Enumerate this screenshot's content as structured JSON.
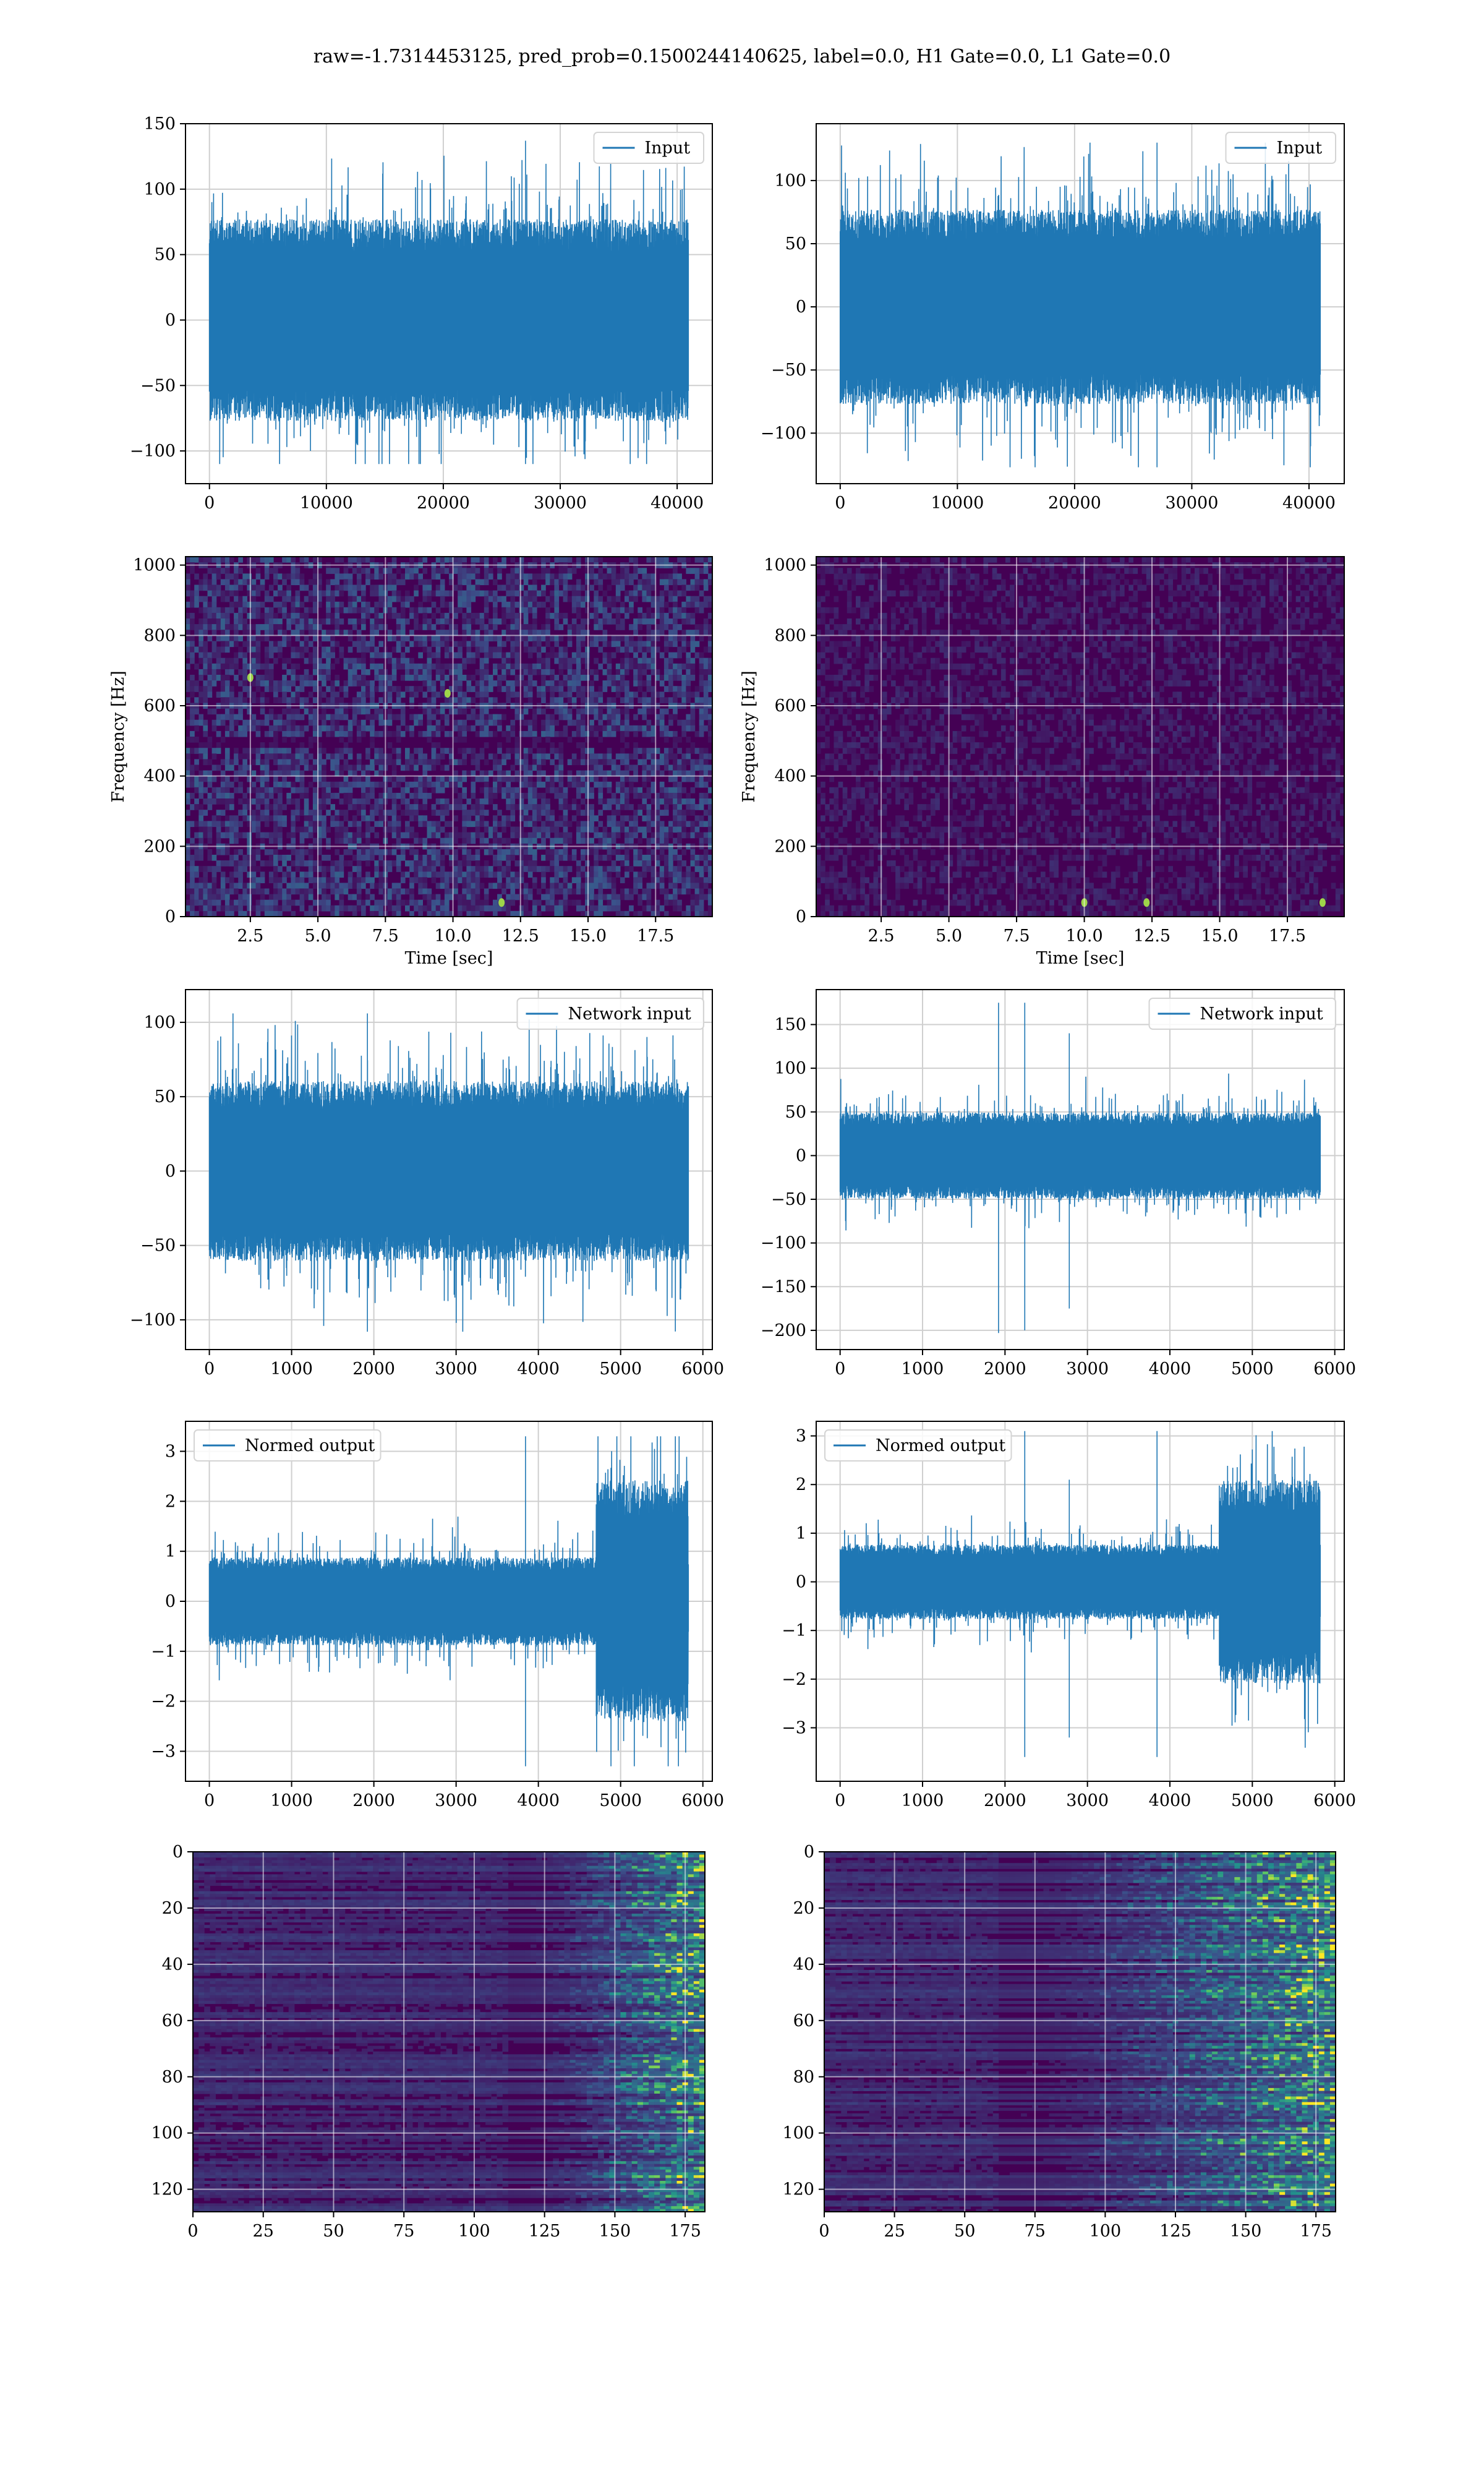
{
  "suptitle": "raw=-1.7314453125, pred_prob=0.1500244140625, label=0.0, H1 Gate=0.0, L1 Gate=0.0",
  "colors": {
    "line": "#1f77b4",
    "grid": "#cfcfcf",
    "spec_bg": "#440154"
  },
  "chart_data": [
    {
      "type": "line",
      "panel": "row1-left",
      "domain_role": "H1 input strain",
      "series": [
        {
          "name": "Input",
          "envelope_min": -110,
          "envelope_max": 137,
          "typical_band": [
            -70,
            70
          ]
        }
      ],
      "x": {
        "min": 0,
        "max": 40960
      },
      "xlim": [
        -2048,
        43008
      ],
      "xticks": [
        0,
        10000,
        20000,
        30000,
        40000
      ],
      "ylim": [
        -125,
        150
      ],
      "yticks": [
        -100,
        -50,
        0,
        50,
        100,
        150
      ],
      "grid": true,
      "legend": "upper right",
      "xlabel": "",
      "ylabel": ""
    },
    {
      "type": "line",
      "panel": "row1-right",
      "series": [
        {
          "name": "Input",
          "envelope_min": -127,
          "envelope_max": 130,
          "typical_band": [
            -70,
            70
          ]
        }
      ],
      "x": {
        "min": 0,
        "max": 40960
      },
      "xlim": [
        -2048,
        43008
      ],
      "xticks": [
        0,
        10000,
        20000,
        30000,
        40000
      ],
      "ylim": [
        -140,
        145
      ],
      "yticks": [
        -100,
        -50,
        0,
        50,
        100
      ],
      "grid": true,
      "legend": "upper right",
      "xlabel": "",
      "ylabel": ""
    },
    {
      "type": "heatmap",
      "panel": "row2-left",
      "colormap": "viridis",
      "xlim": [
        0.1,
        19.6
      ],
      "xticks": [
        2.5,
        5.0,
        7.5,
        10.0,
        12.5,
        15.0,
        17.5
      ],
      "xtick_labels": [
        "2.5",
        "5.0",
        "7.5",
        "10.0",
        "12.5",
        "15.0",
        "17.5"
      ],
      "ylim": [
        0,
        1024
      ],
      "yticks": [
        0,
        200,
        400,
        600,
        800,
        1000
      ],
      "xlabel": "Time [sec]",
      "ylabel": "Frequency [Hz]",
      "intensity": "moderate speckle, dark band near 500 Hz",
      "hot_spots": [
        {
          "t": 2.5,
          "f": 680
        },
        {
          "t": 11.8,
          "f": 40
        },
        {
          "t": 9.8,
          "f": 635
        }
      ],
      "grid": true
    },
    {
      "type": "heatmap",
      "panel": "row2-right",
      "colormap": "viridis",
      "xlim": [
        0.1,
        19.6
      ],
      "xticks": [
        2.5,
        5.0,
        7.5,
        10.0,
        12.5,
        15.0,
        17.5
      ],
      "xtick_labels": [
        "2.5",
        "5.0",
        "7.5",
        "10.0",
        "12.5",
        "15.0",
        "17.5"
      ],
      "ylim": [
        0,
        1024
      ],
      "yticks": [
        0,
        200,
        400,
        600,
        800,
        1000
      ],
      "xlabel": "Time [sec]",
      "ylabel": "Frequency [Hz]",
      "intensity": "low speckle",
      "hot_spots": [
        {
          "t": 12.3,
          "f": 40
        },
        {
          "t": 10.0,
          "f": 40
        },
        {
          "t": 18.8,
          "f": 40
        }
      ],
      "grid": true
    },
    {
      "type": "line",
      "panel": "row3-left",
      "series": [
        {
          "name": "Network input",
          "envelope_min": -108,
          "envelope_max": 106,
          "typical_band": [
            -55,
            55
          ]
        }
      ],
      "x": {
        "min": 0,
        "max": 5824
      },
      "xlim": [
        -290,
        6115
      ],
      "xticks": [
        0,
        1000,
        2000,
        3000,
        4000,
        5000,
        6000
      ],
      "ylim": [
        -120,
        122
      ],
      "yticks": [
        -100,
        -50,
        0,
        50,
        100
      ],
      "grid": true,
      "legend": "upper right",
      "xlabel": "",
      "ylabel": ""
    },
    {
      "type": "line",
      "panel": "row3-right",
      "series": [
        {
          "name": "Network input",
          "envelope_min": -203,
          "envelope_max": 175,
          "typical_band": [
            -45,
            45
          ],
          "spikes": [
            {
              "x": 2240,
              "min": -200,
              "max": 175
            },
            {
              "x": 2780,
              "min": -175,
              "max": 140
            }
          ]
        }
      ],
      "x": {
        "min": 0,
        "max": 5824
      },
      "xlim": [
        -290,
        6115
      ],
      "xticks": [
        0,
        1000,
        2000,
        3000,
        4000,
        5000,
        6000
      ],
      "ylim": [
        -222,
        190
      ],
      "yticks": [
        -200,
        -150,
        -100,
        -50,
        0,
        50,
        100,
        150
      ],
      "grid": true,
      "legend": "upper right",
      "xlabel": "",
      "ylabel": ""
    },
    {
      "type": "line",
      "panel": "row4-left",
      "series": [
        {
          "name": "Normed output",
          "envelope_min": -3.3,
          "envelope_max": 3.3,
          "typical_band": [
            -0.8,
            0.8
          ],
          "burst": {
            "x_start": 4700,
            "x_end": 5820,
            "band": [
              -2.2,
              2.2
            ]
          }
        }
      ],
      "x": {
        "min": 0,
        "max": 5824
      },
      "xlim": [
        -290,
        6115
      ],
      "xticks": [
        0,
        1000,
        2000,
        3000,
        4000,
        5000,
        6000
      ],
      "ylim": [
        -3.6,
        3.6
      ],
      "yticks": [
        -3,
        -2,
        -1,
        0,
        1,
        2,
        3
      ],
      "grid": true,
      "legend": "upper left",
      "xlabel": "",
      "ylabel": ""
    },
    {
      "type": "line",
      "panel": "row4-right",
      "series": [
        {
          "name": "Normed output",
          "envelope_min": -3.6,
          "envelope_max": 3.1,
          "typical_band": [
            -0.7,
            0.7
          ],
          "spikes": [
            {
              "x": 2240,
              "min": -3.6,
              "max": 3.1
            },
            {
              "x": 2780,
              "min": -3.2,
              "max": 2.1
            }
          ],
          "burst": {
            "x_start": 4600,
            "x_end": 5820,
            "band": [
              -1.8,
              2.0
            ]
          }
        }
      ],
      "x": {
        "min": 0,
        "max": 5824
      },
      "xlim": [
        -290,
        6115
      ],
      "xticks": [
        0,
        1000,
        2000,
        3000,
        4000,
        5000,
        6000
      ],
      "ylim": [
        -4.1,
        3.3
      ],
      "yticks": [
        -3,
        -2,
        -1,
        0,
        1,
        2,
        3
      ],
      "grid": true,
      "legend": "upper left",
      "xlabel": "",
      "ylabel": ""
    },
    {
      "type": "heatmap",
      "panel": "row5-left",
      "colormap": "viridis",
      "xlim": [
        0,
        182
      ],
      "xticks": [
        0,
        25,
        50,
        75,
        100,
        125,
        150,
        175
      ],
      "ylim": [
        128,
        0
      ],
      "yticks": [
        0,
        20,
        40,
        60,
        80,
        100,
        120
      ],
      "inverted_y": true,
      "activity_onset_x": 110,
      "xlabel": "",
      "ylabel": "",
      "grid": true
    },
    {
      "type": "heatmap",
      "panel": "row5-right",
      "colormap": "viridis",
      "xlim": [
        0,
        182
      ],
      "xticks": [
        0,
        25,
        50,
        75,
        100,
        125,
        150,
        175
      ],
      "ylim": [
        128,
        0
      ],
      "yticks": [
        0,
        20,
        40,
        60,
        80,
        100,
        120
      ],
      "inverted_y": true,
      "activity_onset_x": 60,
      "xlabel": "",
      "ylabel": "",
      "grid": true
    }
  ]
}
